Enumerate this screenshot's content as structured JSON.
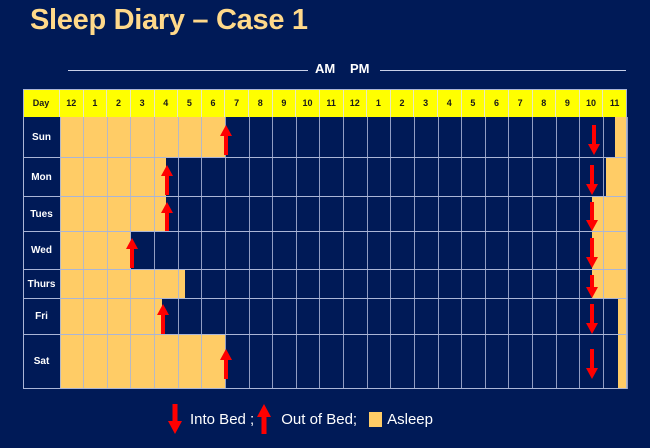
{
  "title": "Sleep Diary – Case 1",
  "period_labels": {
    "am": "AM",
    "pm": "PM"
  },
  "colors": {
    "background": "#001a57",
    "title": "#ffd98a",
    "header": "#ffff00",
    "asleep": "#ffcc66",
    "arrow": "#ff0000",
    "grid": "#aab5d6"
  },
  "legend": {
    "into_bed": "Into Bed ;",
    "out_of_bed": "Out of Bed;",
    "asleep": "Asleep",
    "into_bed_icon": "arrow-down-icon",
    "out_of_bed_icon": "arrow-up-icon"
  },
  "chart_data": {
    "type": "table",
    "title": "Sleep Diary – Case 1",
    "xlabel": "AM   PM",
    "header_first": "Day",
    "hours": [
      "12",
      "1",
      "2",
      "3",
      "4",
      "5",
      "6",
      "7",
      "8",
      "9",
      "10",
      "11",
      "12",
      "1",
      "2",
      "3",
      "4",
      "5",
      "6",
      "7",
      "8",
      "9",
      "10",
      "11"
    ],
    "rows": [
      {
        "day": "Sun",
        "asleep": [
          [
            0,
            7.0
          ],
          [
            23.5,
            24
          ]
        ],
        "out_of_bed": 7.0,
        "into_bed": 22.6
      },
      {
        "day": "Mon",
        "asleep": [
          [
            0,
            4.5
          ],
          [
            23.1,
            24
          ]
        ],
        "out_of_bed": 4.5,
        "into_bed": 22.5
      },
      {
        "day": "Tues",
        "asleep": [
          [
            0,
            4.5
          ],
          [
            22.5,
            24
          ]
        ],
        "out_of_bed": 4.5,
        "into_bed": 22.5
      },
      {
        "day": "Wed",
        "asleep": [
          [
            0,
            3.0
          ],
          [
            22.5,
            24
          ]
        ],
        "out_of_bed": 3.0,
        "into_bed": 22.5
      },
      {
        "day": "Thurs",
        "asleep": [
          [
            0,
            5.3
          ],
          [
            22.5,
            24
          ]
        ],
        "out_of_bed": null,
        "into_bed": 22.5
      },
      {
        "day": "Fri",
        "asleep": [
          [
            0,
            4.3
          ],
          [
            23.6,
            24
          ]
        ],
        "out_of_bed": 4.3,
        "into_bed": 22.5
      },
      {
        "day": "Sat",
        "asleep": [
          [
            0,
            7.0
          ],
          [
            23.6,
            24
          ]
        ],
        "out_of_bed": 7.0,
        "into_bed": 22.5
      }
    ],
    "legend": [
      "Into Bed",
      "Out of Bed",
      "Asleep"
    ]
  }
}
